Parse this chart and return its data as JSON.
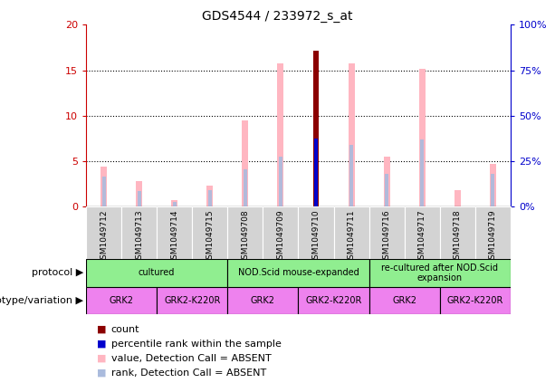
{
  "title": "GDS4544 / 233972_s_at",
  "samples": [
    "GSM1049712",
    "GSM1049713",
    "GSM1049714",
    "GSM1049715",
    "GSM1049708",
    "GSM1049709",
    "GSM1049710",
    "GSM1049711",
    "GSM1049716",
    "GSM1049717",
    "GSM1049718",
    "GSM1049719"
  ],
  "pink_bars": [
    4.4,
    2.8,
    0.7,
    2.3,
    9.5,
    15.8,
    17.2,
    15.8,
    5.5,
    15.2,
    1.8,
    4.7
  ],
  "blue_bars": [
    3.3,
    1.7,
    0.5,
    1.8,
    4.1,
    5.5,
    7.5,
    6.8,
    3.6,
    7.4,
    0.0,
    3.6
  ],
  "red_bar_index": 6,
  "red_bar_value": 17.2,
  "blue_solid_index": 6,
  "blue_solid_value": 7.5,
  "ylim_left": [
    0,
    20
  ],
  "ylim_right": [
    0,
    100
  ],
  "yticks_left": [
    0,
    5,
    10,
    15,
    20
  ],
  "ytick_labels_left": [
    "0",
    "5",
    "10",
    "15",
    "20"
  ],
  "yticks_right": [
    0,
    25,
    50,
    75,
    100
  ],
  "ytick_labels_right": [
    "0%",
    "25%",
    "50%",
    "75%",
    "100%"
  ],
  "protocol_groups": [
    {
      "label": "cultured",
      "start": 0,
      "end": 4,
      "color": "#90EE90"
    },
    {
      "label": "NOD.Scid mouse-expanded",
      "start": 4,
      "end": 8,
      "color": "#90EE90"
    },
    {
      "label": "re-cultured after NOD.Scid\nexpansion",
      "start": 8,
      "end": 12,
      "color": "#90EE90"
    }
  ],
  "genotype_groups": [
    {
      "label": "GRK2",
      "start": 0,
      "end": 2,
      "color": "#EE82EE"
    },
    {
      "label": "GRK2-K220R",
      "start": 2,
      "end": 4,
      "color": "#EE82EE"
    },
    {
      "label": "GRK2",
      "start": 4,
      "end": 6,
      "color": "#EE82EE"
    },
    {
      "label": "GRK2-K220R",
      "start": 6,
      "end": 8,
      "color": "#EE82EE"
    },
    {
      "label": "GRK2",
      "start": 8,
      "end": 10,
      "color": "#EE82EE"
    },
    {
      "label": "GRK2-K220R",
      "start": 10,
      "end": 12,
      "color": "#EE82EE"
    }
  ],
  "legend_items": [
    {
      "label": "count",
      "color": "#8B0000"
    },
    {
      "label": "percentile rank within the sample",
      "color": "#00008B"
    },
    {
      "label": "value, Detection Call = ABSENT",
      "color": "#FFB6C1"
    },
    {
      "label": "rank, Detection Call = ABSENT",
      "color": "#AABBDD"
    }
  ],
  "pink_color": "#FFB6C1",
  "blue_bar_color": "#AABBDD",
  "red_bar_color": "#8B0000",
  "blue_solid_color": "#0000CD",
  "left_axis_color": "#CC0000",
  "right_axis_color": "#0000CC",
  "plot_bg": "#FFFFFF",
  "xtick_bg": "#D3D3D3",
  "border_color": "#000000",
  "protocol_label": "protocol",
  "genotype_label": "genotype/variation"
}
